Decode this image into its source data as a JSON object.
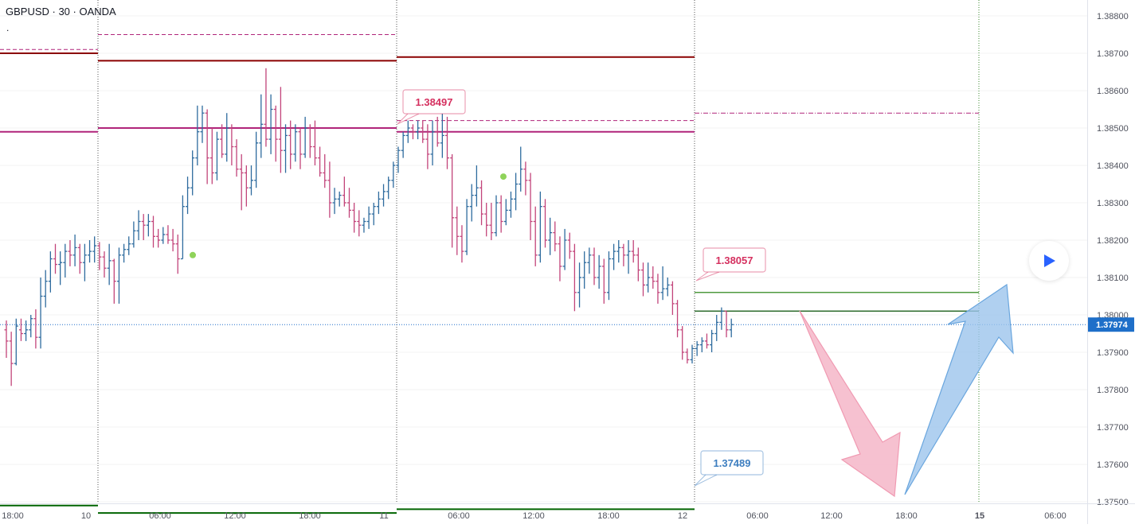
{
  "header": {
    "title": "GBPUSD · 30 · OANDA",
    "dot": "."
  },
  "colors": {
    "up": "#2e6b9e",
    "down": "#c2447a",
    "pivot_r": "#8b0000",
    "pivot_s": "#006400",
    "pivot_p": "#b0247a",
    "green_line": "#4f9a3f",
    "price_tag": "#1e6fc9",
    "callout_pink": "#d5305f",
    "callout_blue": "#3d7ec0",
    "arrow_pink": "#f4b6c8",
    "arrow_blue": "#9cc4ec"
  },
  "play_button": {
    "icon": "play-icon"
  },
  "chart_data": {
    "type": "candlestick",
    "symbol": "GBPUSD",
    "interval": "30",
    "source": "OANDA",
    "y_axis": {
      "ticks": [
        "1.38800",
        "1.38700",
        "1.38600",
        "1.38500",
        "1.38400",
        "1.38300",
        "1.38200",
        "1.38100",
        "1.38000",
        "1.37900",
        "1.37800",
        "1.37700",
        "1.37600",
        "1.37500"
      ],
      "range": [
        1.3743,
        1.3883
      ]
    },
    "x_axis": {
      "labels": [
        "18:00",
        "10",
        "06:00",
        "12:00",
        "18:00",
        "11",
        "06:00",
        "12:00",
        "18:00",
        "12",
        "06:00",
        "12:00",
        "18:00",
        "15",
        "06:00"
      ],
      "bold_labels": [
        "15"
      ]
    },
    "last_price": "1.37974",
    "callouts": [
      "1.38497",
      "1.38057",
      "1.37489"
    ],
    "pivot_levels": [
      {
        "day": "9",
        "r": 1.387,
        "p": 1.3849,
        "s": 1.3749,
        "r_dash": 1.3871
      },
      {
        "day": "10",
        "r": 1.3868,
        "p": 1.385,
        "s": 1.3747,
        "r_dash": 1.3875
      },
      {
        "day": "11",
        "r": 1.3869,
        "p": 1.3849,
        "s": 1.3748,
        "r_dash": 1.3852
      },
      {
        "day": "12",
        "r_dash": 1.3854,
        "green1": 1.3806,
        "green2": 1.3801
      }
    ],
    "signal_dots": [
      1.3816,
      1.3837
    ],
    "candles": [
      [
        1.3796,
        1.37985,
        1.37885,
        1.3793
      ],
      [
        1.3793,
        1.37955,
        1.3781,
        1.3787
      ],
      [
        1.3787,
        1.3799,
        1.37865,
        1.3797
      ],
      [
        1.3796,
        1.3799,
        1.3793,
        1.3795
      ],
      [
        1.3795,
        1.37985,
        1.3793,
        1.3796
      ],
      [
        1.3796,
        1.38,
        1.3794,
        1.3799
      ],
      [
        1.3799,
        1.38015,
        1.3791,
        1.3794
      ],
      [
        1.3794,
        1.381,
        1.3791,
        1.3805
      ],
      [
        1.3805,
        1.3812,
        1.3802,
        1.3809
      ],
      [
        1.3809,
        1.3817,
        1.3806,
        1.3815
      ],
      [
        1.3815,
        1.3819,
        1.3811,
        1.38135
      ],
      [
        1.38135,
        1.3817,
        1.3808,
        1.3814
      ],
      [
        1.3814,
        1.3819,
        1.381,
        1.3817
      ],
      [
        1.3817,
        1.382,
        1.3813,
        1.3816
      ],
      [
        1.3816,
        1.38215,
        1.3813,
        1.3818
      ],
      [
        1.3818,
        1.3819,
        1.3811,
        1.3814
      ],
      [
        1.3814,
        1.3819,
        1.3809,
        1.3816
      ],
      [
        1.3816,
        1.382,
        1.3814,
        1.3817
      ],
      [
        1.3817,
        1.3821,
        1.3814,
        1.38185
      ],
      [
        1.38185,
        1.38195,
        1.3812,
        1.38155
      ],
      [
        1.38155,
        1.3817,
        1.381,
        1.38125
      ],
      [
        1.38125,
        1.3819,
        1.3808,
        1.38145
      ],
      [
        1.38145,
        1.3815,
        1.3803,
        1.3809
      ],
      [
        1.3809,
        1.3818,
        1.3803,
        1.3816
      ],
      [
        1.3816,
        1.3819,
        1.3814,
        1.38175
      ],
      [
        1.38175,
        1.3821,
        1.3816,
        1.3819
      ],
      [
        1.3819,
        1.3825,
        1.3818,
        1.38225
      ],
      [
        1.38225,
        1.3828,
        1.382,
        1.3825
      ],
      [
        1.3825,
        1.3827,
        1.382,
        1.3824
      ],
      [
        1.3824,
        1.3827,
        1.3821,
        1.3825
      ],
      [
        1.3825,
        1.38265,
        1.3818,
        1.3821
      ],
      [
        1.3821,
        1.3823,
        1.3818,
        1.382
      ],
      [
        1.382,
        1.38235,
        1.3819,
        1.38215
      ],
      [
        1.38215,
        1.3824,
        1.3819,
        1.382
      ],
      [
        1.382,
        1.3823,
        1.3817,
        1.3819
      ],
      [
        1.3819,
        1.38215,
        1.3811,
        1.3815
      ],
      [
        1.3815,
        1.3832,
        1.3815,
        1.3829
      ],
      [
        1.3829,
        1.3837,
        1.3827,
        1.3834
      ],
      [
        1.3834,
        1.3844,
        1.3832,
        1.3842
      ],
      [
        1.3842,
        1.3856,
        1.384,
        1.3849
      ],
      [
        1.3849,
        1.3856,
        1.3846,
        1.3854
      ],
      [
        1.3854,
        1.3855,
        1.3835,
        1.3842
      ],
      [
        1.3842,
        1.385,
        1.3835,
        1.3838
      ],
      [
        1.3838,
        1.3849,
        1.3836,
        1.3847
      ],
      [
        1.3847,
        1.3851,
        1.3842,
        1.3843
      ],
      [
        1.3843,
        1.3854,
        1.3841,
        1.385
      ],
      [
        1.385,
        1.3851,
        1.384,
        1.3845
      ],
      [
        1.3845,
        1.3847,
        1.3837,
        1.3839
      ],
      [
        1.3839,
        1.3843,
        1.3828,
        1.3838
      ],
      [
        1.3838,
        1.384,
        1.3829,
        1.3834
      ],
      [
        1.3834,
        1.384,
        1.3832,
        1.3836
      ],
      [
        1.3836,
        1.3849,
        1.3834,
        1.3846
      ],
      [
        1.3846,
        1.3859,
        1.3842,
        1.3851
      ],
      [
        1.3851,
        1.3866,
        1.3845,
        1.3847
      ],
      [
        1.3847,
        1.3859,
        1.3843,
        1.3855
      ],
      [
        1.3855,
        1.3856,
        1.3841,
        1.3847
      ],
      [
        1.3847,
        1.3861,
        1.3838,
        1.3844
      ],
      [
        1.3844,
        1.3851,
        1.3838,
        1.3848
      ],
      [
        1.3848,
        1.3852,
        1.3839,
        1.3843
      ],
      [
        1.3843,
        1.3851,
        1.3841,
        1.3849
      ],
      [
        1.3849,
        1.385,
        1.3839,
        1.3843
      ],
      [
        1.3843,
        1.3853,
        1.3842,
        1.385
      ],
      [
        1.385,
        1.3851,
        1.3842,
        1.3845
      ],
      [
        1.3845,
        1.3852,
        1.384,
        1.3842
      ],
      [
        1.3842,
        1.3845,
        1.3837,
        1.3838
      ],
      [
        1.3838,
        1.3843,
        1.3834,
        1.3836
      ],
      [
        1.3836,
        1.3841,
        1.3826,
        1.383
      ],
      [
        1.383,
        1.3834,
        1.3827,
        1.3831
      ],
      [
        1.3831,
        1.3833,
        1.3829,
        1.3832
      ],
      [
        1.3832,
        1.3837,
        1.3829,
        1.383
      ],
      [
        1.383,
        1.3834,
        1.3826,
        1.3828
      ],
      [
        1.3828,
        1.383,
        1.3822,
        1.3825
      ],
      [
        1.3825,
        1.3828,
        1.3821,
        1.3824
      ],
      [
        1.3824,
        1.3826,
        1.3822,
        1.3825
      ],
      [
        1.3825,
        1.3829,
        1.3823,
        1.3827
      ],
      [
        1.3827,
        1.383,
        1.3824,
        1.3829
      ],
      [
        1.3829,
        1.3833,
        1.3827,
        1.3831
      ],
      [
        1.3831,
        1.3835,
        1.3829,
        1.3833
      ],
      [
        1.3833,
        1.3837,
        1.3831,
        1.3836
      ],
      [
        1.3836,
        1.3841,
        1.3834,
        1.384
      ],
      [
        1.384,
        1.3845,
        1.3838,
        1.3844
      ],
      [
        1.3844,
        1.3849,
        1.3842,
        1.3848
      ],
      [
        1.3848,
        1.3852,
        1.3846,
        1.385
      ],
      [
        1.385,
        1.3851,
        1.3847,
        1.3849
      ],
      [
        1.3849,
        1.3852,
        1.3847,
        1.385
      ],
      [
        1.385,
        1.3852,
        1.3846,
        1.3847
      ],
      [
        1.3847,
        1.3851,
        1.3839,
        1.3843
      ],
      [
        1.3843,
        1.3852,
        1.384,
        1.3849
      ],
      [
        1.3849,
        1.3853,
        1.3845,
        1.3846
      ],
      [
        1.3846,
        1.3859,
        1.3842,
        1.3848
      ],
      [
        1.3848,
        1.3853,
        1.3839,
        1.3842
      ],
      [
        1.3842,
        1.3843,
        1.3818,
        1.3826
      ],
      [
        1.3826,
        1.3829,
        1.3816,
        1.3821
      ],
      [
        1.3821,
        1.3824,
        1.3814,
        1.3817
      ],
      [
        1.3817,
        1.3831,
        1.3816,
        1.3829
      ],
      [
        1.3829,
        1.3835,
        1.3825,
        1.3832
      ],
      [
        1.3832,
        1.384,
        1.3829,
        1.3834
      ],
      [
        1.3834,
        1.3836,
        1.3824,
        1.3827
      ],
      [
        1.3827,
        1.383,
        1.3821,
        1.3824
      ],
      [
        1.3824,
        1.383,
        1.382,
        1.3822
      ],
      [
        1.3822,
        1.3832,
        1.3821,
        1.383
      ],
      [
        1.383,
        1.3832,
        1.3822,
        1.3825
      ],
      [
        1.3825,
        1.3831,
        1.3824,
        1.3828
      ],
      [
        1.3828,
        1.3833,
        1.3826,
        1.3831
      ],
      [
        1.3831,
        1.3838,
        1.3828,
        1.3835
      ],
      [
        1.3835,
        1.3845,
        1.3833,
        1.3839
      ],
      [
        1.3839,
        1.3841,
        1.3832,
        1.3836
      ],
      [
        1.3836,
        1.3838,
        1.382,
        1.3825
      ],
      [
        1.3825,
        1.3829,
        1.3813,
        1.3816
      ],
      [
        1.3816,
        1.3833,
        1.3814,
        1.3829
      ],
      [
        1.3829,
        1.3831,
        1.3818,
        1.382
      ],
      [
        1.382,
        1.3826,
        1.3816,
        1.3822
      ],
      [
        1.3822,
        1.3825,
        1.3817,
        1.3819
      ],
      [
        1.3819,
        1.3821,
        1.3809,
        1.3813
      ],
      [
        1.3813,
        1.3823,
        1.3812,
        1.382
      ],
      [
        1.382,
        1.3822,
        1.3815,
        1.3817
      ],
      [
        1.3817,
        1.3819,
        1.3801,
        1.3806
      ],
      [
        1.3806,
        1.3814,
        1.3802,
        1.381
      ],
      [
        1.381,
        1.3817,
        1.3807,
        1.3814
      ],
      [
        1.3814,
        1.3818,
        1.3811,
        1.3816
      ],
      [
        1.3816,
        1.3818,
        1.3808,
        1.381
      ],
      [
        1.381,
        1.3816,
        1.3807,
        1.3813
      ],
      [
        1.3813,
        1.3815,
        1.3803,
        1.3806
      ],
      [
        1.3806,
        1.3817,
        1.3804,
        1.3815
      ],
      [
        1.3815,
        1.3819,
        1.3812,
        1.3817
      ],
      [
        1.3817,
        1.382,
        1.3814,
        1.3818
      ],
      [
        1.3818,
        1.3819,
        1.3813,
        1.3816
      ],
      [
        1.3816,
        1.382,
        1.3811,
        1.3817
      ],
      [
        1.3817,
        1.382,
        1.3814,
        1.3816
      ],
      [
        1.3816,
        1.3818,
        1.3809,
        1.3812
      ],
      [
        1.3812,
        1.3814,
        1.3805,
        1.3808
      ],
      [
        1.3808,
        1.3814,
        1.3806,
        1.381
      ],
      [
        1.381,
        1.3813,
        1.3807,
        1.3809
      ],
      [
        1.3809,
        1.3811,
        1.3803,
        1.3806
      ],
      [
        1.3806,
        1.3813,
        1.3804,
        1.3807
      ],
      [
        1.3807,
        1.381,
        1.3805,
        1.3808
      ],
      [
        1.3808,
        1.3809,
        1.38,
        1.3803
      ],
      [
        1.3803,
        1.3804,
        1.3794,
        1.3796
      ],
      [
        1.3796,
        1.3797,
        1.3788,
        1.379
      ],
      [
        1.379,
        1.3791,
        1.3787,
        1.3788
      ],
      [
        1.3788,
        1.3792,
        1.3787,
        1.3791
      ],
      [
        1.3791,
        1.3793,
        1.3789,
        1.3792
      ],
      [
        1.3792,
        1.3794,
        1.379,
        1.3793
      ],
      [
        1.3793,
        1.3795,
        1.3791,
        1.3792
      ],
      [
        1.3792,
        1.3796,
        1.379,
        1.3795
      ],
      [
        1.3795,
        1.38,
        1.3793,
        1.3798
      ],
      [
        1.3798,
        1.3802,
        1.3796,
        1.3801
      ],
      [
        1.3801,
        1.3801,
        1.3794,
        1.3796
      ],
      [
        1.3796,
        1.3799,
        1.3794,
        1.37974
      ]
    ]
  }
}
